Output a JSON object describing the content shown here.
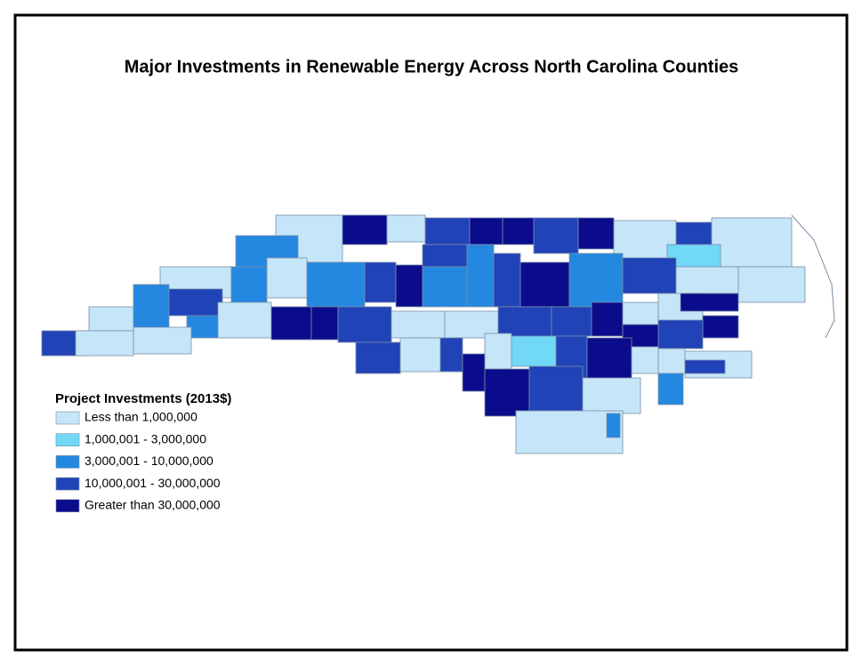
{
  "title": "Major Investments in Renewable Energy Across North Carolina Counties",
  "legend": {
    "title": "Project Investments (2013$)",
    "items": [
      {
        "label": "Less than 1,000,000",
        "color": "#c5e6f8"
      },
      {
        "label": "1,000,001 - 3,000,000",
        "color": "#72d8f7"
      },
      {
        "label": "3,000,001 - 10,000,000",
        "color": "#2488e0"
      },
      {
        "label": "10,000,001 - 30,000,000",
        "color": "#2143b8"
      },
      {
        "label": "Greater than 30,000,000",
        "color": "#0b0c8c"
      }
    ]
  }
}
